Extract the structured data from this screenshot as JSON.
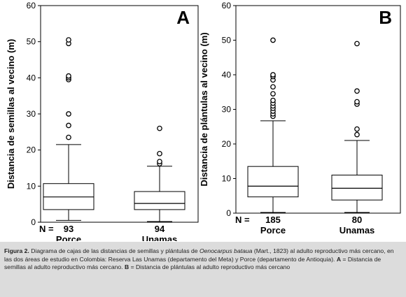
{
  "chart_data": [
    {
      "type": "box",
      "panel": "A",
      "ylabel": "Distancia de semillas al vecino (m)",
      "ylim": [
        0,
        60
      ],
      "yticks": [
        0,
        10,
        20,
        30,
        40,
        50,
        60
      ],
      "n_label": "N =",
      "categories": [
        {
          "name": "Porce",
          "n": "93",
          "min": 0.5,
          "q1": 3.5,
          "median": 7,
          "q3": 10.7,
          "max": 21.5,
          "outliers": [
            23.5,
            26.8,
            30,
            39.5,
            40,
            40.5,
            49.5,
            50.5
          ]
        },
        {
          "name": "Unamas",
          "n": "94",
          "min": 0.2,
          "q1": 3.5,
          "median": 5.2,
          "q3": 8.5,
          "max": 15.5,
          "outliers": [
            16.2,
            16.8,
            19,
            26
          ]
        }
      ]
    },
    {
      "type": "box",
      "panel": "B",
      "ylabel": "Distancia de plántulas al vecino (m)",
      "ylim": [
        0,
        60
      ],
      "yticks": [
        0,
        10,
        20,
        30,
        40,
        50,
        60
      ],
      "n_label": "N =",
      "categories": [
        {
          "name": "Porce",
          "n": "185",
          "min": 0.2,
          "q1": 4.7,
          "median": 7.8,
          "q3": 13.5,
          "max": 26.7,
          "outliers": [
            28,
            28.7,
            29.5,
            30.3,
            31,
            31.8,
            32.6,
            34.5,
            36.5,
            38.5,
            39.5,
            40,
            50
          ]
        },
        {
          "name": "Unamas",
          "n": "80",
          "min": 0.2,
          "q1": 3.8,
          "median": 7.2,
          "q3": 11,
          "max": 21,
          "outliers": [
            22.7,
            24.3,
            31.5,
            32.2,
            35.3,
            49
          ]
        }
      ]
    }
  ],
  "caption": {
    "label": "Figura 2.",
    "part1": " Diagrama de cajas de las distancias de semillas y plántulas de ",
    "species": "Oenocarpus bataua",
    "part2": " (Mart., 1823) al adulto reproductivo más cercano, en las dos áreas de estudio en Colombia: Reserva Las Unamas (departamento del Meta) y Porce (departamento de Antioquia). ",
    "a_label": "A",
    "a_text": " = Distancia de semillas al adulto reproductivo más cercano. ",
    "b_label": "B",
    "b_text": " = Distancia de plántulas al adulto reproductivo más cercano"
  }
}
